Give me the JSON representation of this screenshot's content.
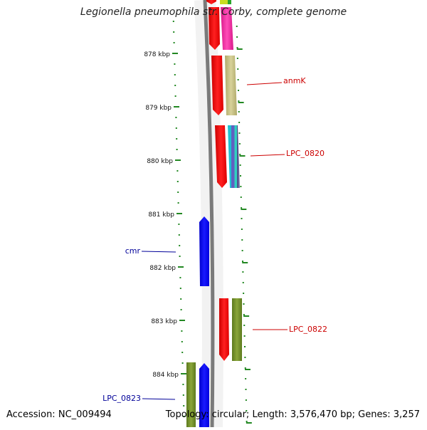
{
  "title": "Legionella pneumophila str. Corby, complete genome",
  "footer": {
    "accession_label": "Accession:",
    "accession": "NC_009494",
    "topology_label": "Topology:",
    "topology": "circular",
    "length_label": "Length:",
    "length": "3,576,470 bp",
    "genes_label": "Genes:",
    "genes": "3,257"
  },
  "ticks": [
    {
      "label": "878 kbp",
      "value": 878
    },
    {
      "label": "879 kbp",
      "value": 879
    },
    {
      "label": "880 kbp",
      "value": 880
    },
    {
      "label": "881 kbp",
      "value": 881
    },
    {
      "label": "882 kbp",
      "value": 882
    },
    {
      "label": "883 kbp",
      "value": 883
    },
    {
      "label": "884 kbp",
      "value": 884
    }
  ],
  "gene_labels": [
    {
      "text": "anmK",
      "color": "#cc0000",
      "side": "right"
    },
    {
      "text": "LPC_0820",
      "color": "#cc0000",
      "side": "right"
    },
    {
      "text": "cmr",
      "color": "#000099",
      "side": "left"
    },
    {
      "text": "LPC_0822",
      "color": "#cc0000",
      "side": "right"
    },
    {
      "text": "LPC_0823",
      "color": "#000099",
      "side": "left"
    }
  ],
  "colors": {
    "forward_gene": "#ff0000",
    "reverse_gene": "#0000ff",
    "tick": "#228822",
    "backbone": "#888888"
  }
}
